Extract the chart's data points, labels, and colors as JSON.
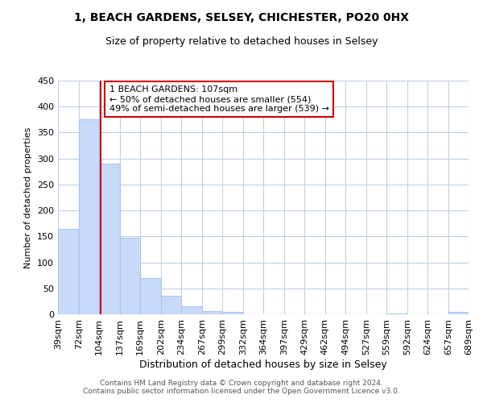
{
  "title1": "1, BEACH GARDENS, SELSEY, CHICHESTER, PO20 0HX",
  "title2": "Size of property relative to detached houses in Selsey",
  "xlabel": "Distribution of detached houses by size in Selsey",
  "ylabel": "Number of detached properties",
  "bar_edges": [
    39,
    72,
    104,
    137,
    169,
    202,
    234,
    267,
    299,
    332,
    364,
    397,
    429,
    462,
    494,
    527,
    559,
    592,
    624,
    657,
    689
  ],
  "bar_heights": [
    165,
    375,
    290,
    147,
    70,
    35,
    15,
    6,
    5,
    0,
    0,
    0,
    0,
    0,
    0,
    0,
    1,
    0,
    0,
    5
  ],
  "bar_color": "#c9daf8",
  "bar_edge_color": "#a8c4f5",
  "property_size": 107,
  "vline_color": "#cc0000",
  "annotation_text": "1 BEACH GARDENS: 107sqm\n← 50% of detached houses are smaller (554)\n49% of semi-detached houses are larger (539) →",
  "annotation_box_color": "#ffffff",
  "annotation_box_edge": "#cc0000",
  "ylim": [
    0,
    450
  ],
  "yticks": [
    0,
    50,
    100,
    150,
    200,
    250,
    300,
    350,
    400,
    450
  ],
  "background_color": "#ffffff",
  "grid_color": "#c0cfe8",
  "footer_text": "Contains HM Land Registry data © Crown copyright and database right 2024.\nContains public sector information licensed under the Open Government Licence v3.0.",
  "tick_labels": [
    "39sqm",
    "72sqm",
    "104sqm",
    "137sqm",
    "169sqm",
    "202sqm",
    "234sqm",
    "267sqm",
    "299sqm",
    "332sqm",
    "364sqm",
    "397sqm",
    "429sqm",
    "462sqm",
    "494sqm",
    "527sqm",
    "559sqm",
    "592sqm",
    "624sqm",
    "657sqm",
    "689sqm"
  ]
}
